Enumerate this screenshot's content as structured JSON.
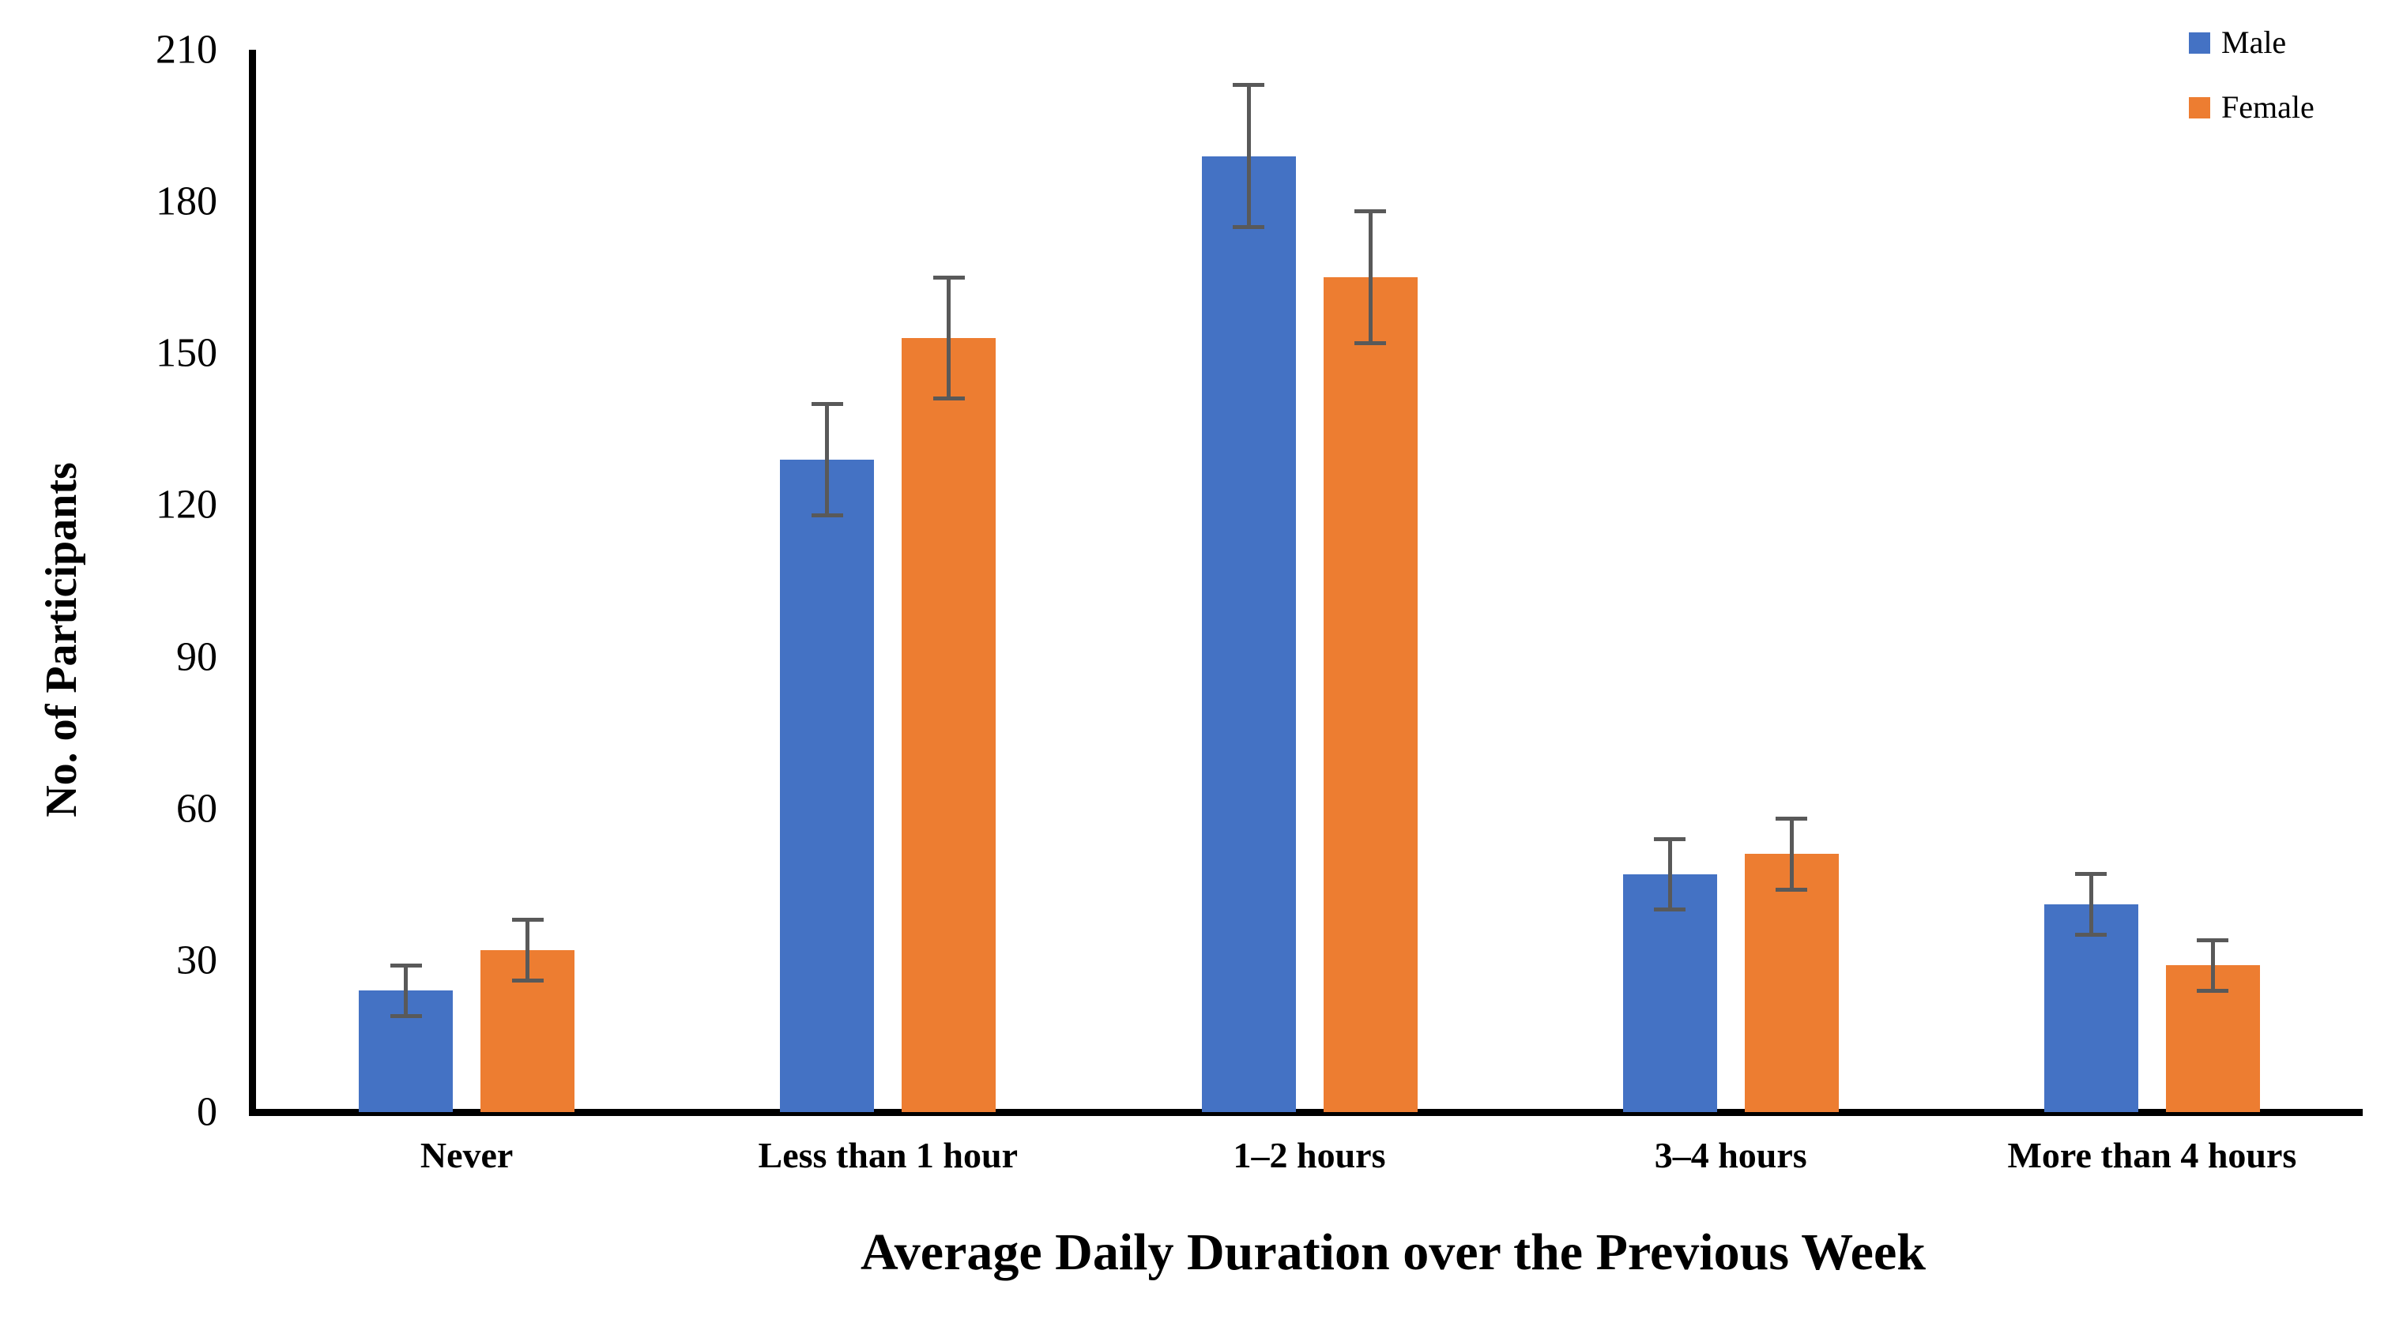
{
  "chart_data": {
    "type": "bar",
    "title": "",
    "xlabel": "Average Daily Duration over the Previous Week",
    "ylabel": "No. of Participants",
    "categories": [
      "Never",
      "Less than 1 hour",
      "1–2 hours",
      "3–4 hours",
      "More than 4 hours"
    ],
    "series": [
      {
        "name": "Male",
        "color": "#4472C4",
        "values": [
          24,
          129,
          189,
          47,
          41
        ],
        "errors": [
          5,
          11,
          14,
          7,
          6
        ]
      },
      {
        "name": "Female",
        "color": "#ED7D31",
        "values": [
          32,
          153,
          165,
          51,
          29
        ],
        "errors": [
          6,
          12,
          13,
          7,
          5
        ]
      }
    ],
    "ylim": [
      0,
      210
    ],
    "ytick_interval": 30,
    "yticks": [
      0,
      30,
      60,
      90,
      120,
      150,
      180,
      210
    ],
    "grid": "off",
    "legend_position": "top-right",
    "error_bar_color": "#595959",
    "axis_color": "#000000",
    "background_color": "#FFFFFF"
  }
}
